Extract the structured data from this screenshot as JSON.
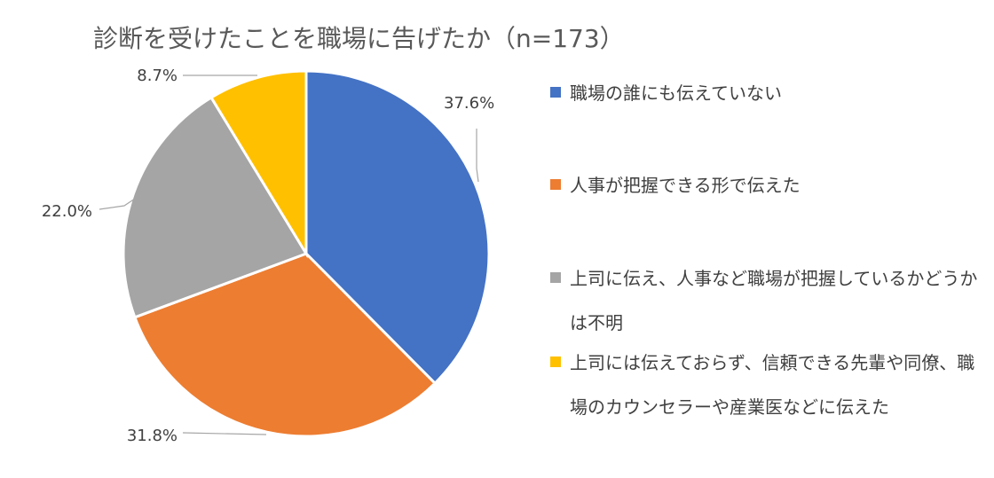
{
  "chart_data": {
    "type": "pie",
    "title": "診断を受けたことを職場に告げたか（n=173）",
    "slices": [
      {
        "label": "職場の誰にも伝えていない",
        "value": 37.6,
        "value_label": "37.6%",
        "color": "#4472C4"
      },
      {
        "label": "人事が把握できる形で伝えた",
        "value": 31.8,
        "value_label": "31.8%",
        "color": "#ED7D31"
      },
      {
        "label": "上司に伝え、人事など職場が把握しているかどうかは不明",
        "value": 22.0,
        "value_label": "22.0%",
        "color": "#A5A5A5"
      },
      {
        "label": "上司には伝えておらず、信頼できる先輩や同僚、職場のカウンセラーや産業医などに伝えた",
        "value": 8.7,
        "value_label": "8.7%",
        "color": "#FFC000"
      }
    ],
    "legend_position": "right"
  }
}
